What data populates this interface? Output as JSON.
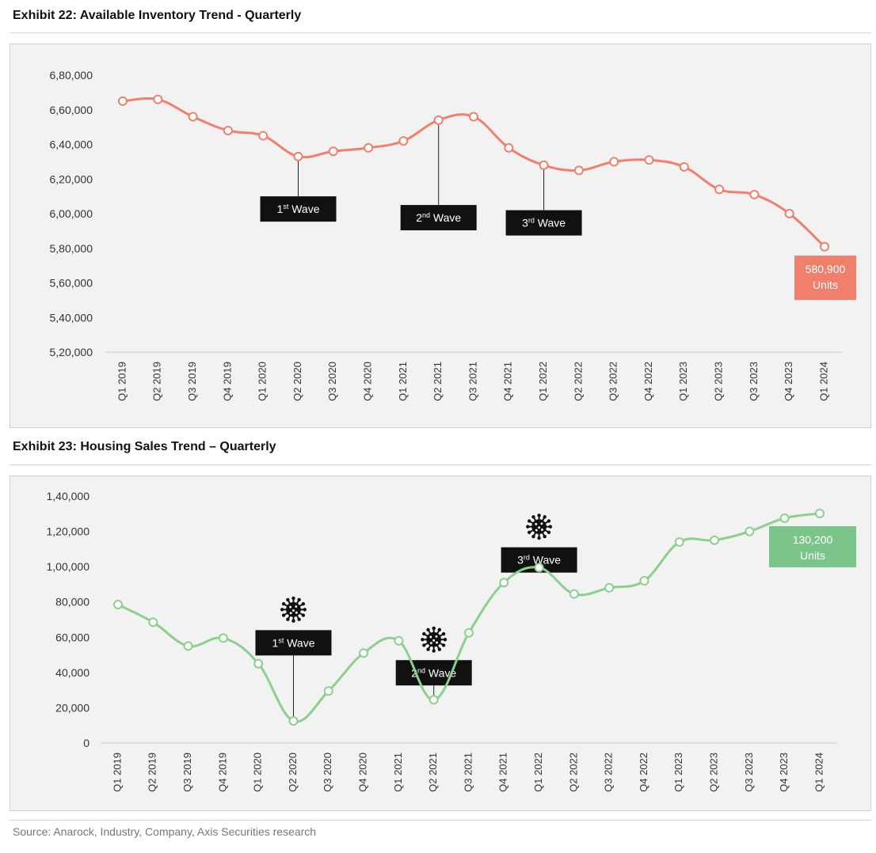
{
  "exhibit22": {
    "title": "Exhibit 22: Available Inventory Trend - Quarterly"
  },
  "exhibit23": {
    "title": "Exhibit 23: Housing Sales Trend –  Quarterly"
  },
  "source": "Source: Anarock, Industry, Company, Axis Securities research",
  "chart_data": [
    {
      "type": "line",
      "title": "Exhibit 22: Available Inventory Trend - Quarterly",
      "xlabel": "",
      "ylabel": "",
      "categories": [
        "Q1 2019",
        "Q2 2019",
        "Q3 2019",
        "Q4 2019",
        "Q1 2020",
        "Q2 2020",
        "Q3 2020",
        "Q4 2020",
        "Q1 2021",
        "Q2 2021",
        "Q3 2021",
        "Q4 2021",
        "Q1 2022",
        "Q2 2022",
        "Q3 2022",
        "Q4 2022",
        "Q1 2023",
        "Q2 2023",
        "Q3 2023",
        "Q4 2023",
        "Q1 2024"
      ],
      "series": [
        {
          "name": "Available Inventory",
          "color": "#f07f6c",
          "values": [
            665000,
            666000,
            656000,
            648000,
            645000,
            633000,
            636000,
            638000,
            642000,
            654000,
            656000,
            638000,
            628000,
            625000,
            630000,
            631000,
            627000,
            614000,
            611000,
            600000,
            580900
          ]
        }
      ],
      "ylim": [
        520000,
        680000
      ],
      "yticks": [
        {
          "v": 520000,
          "label": "5,20,000"
        },
        {
          "v": 540000,
          "label": "5,40,000"
        },
        {
          "v": 560000,
          "label": "5,60,000"
        },
        {
          "v": 580000,
          "label": "5,80,000"
        },
        {
          "v": 600000,
          "label": "6,00,000"
        },
        {
          "v": 620000,
          "label": "6,20,000"
        },
        {
          "v": 640000,
          "label": "6,40,000"
        },
        {
          "v": 660000,
          "label": "6,60,000"
        },
        {
          "v": 680000,
          "label": "6,80,000"
        }
      ],
      "annotations": [
        {
          "index": 5,
          "base": "1",
          "sup": "st",
          "rest": " Wave",
          "value_at": 610000
        },
        {
          "index": 9,
          "base": "2",
          "sup": "nd",
          "rest": " Wave",
          "value_at": 605000
        },
        {
          "index": 12,
          "base": "3",
          "sup": "rd",
          "rest": " Wave",
          "value_at": 602000
        }
      ],
      "callout": {
        "lines": [
          "580,900",
          "Units"
        ],
        "color": "#f07f6c"
      },
      "virus_icons": []
    },
    {
      "type": "line",
      "title": "Exhibit 23: Housing Sales Trend –  Quarterly",
      "xlabel": "",
      "ylabel": "",
      "categories": [
        "Q1 2019",
        "Q2 2019",
        "Q3 2019",
        "Q4 2019",
        "Q1 2020",
        "Q2 2020",
        "Q3 2020",
        "Q4 2020",
        "Q1 2021",
        "Q2 2021",
        "Q3 2021",
        "Q4 2021",
        "Q1 2022",
        "Q2 2022",
        "Q3 2022",
        "Q4 2022",
        "Q1 2023",
        "Q2 2023",
        "Q3 2023",
        "Q4 2023",
        "Q1 2024"
      ],
      "series": [
        {
          "name": "Housing Sales",
          "color": "#8ccf8e",
          "values": [
            78500,
            68500,
            55000,
            59500,
            45000,
            12500,
            29500,
            51000,
            58000,
            24500,
            62500,
            91000,
            99500,
            84500,
            88000,
            92000,
            114000,
            115000,
            120000,
            127500,
            130200
          ]
        }
      ],
      "ylim": [
        0,
        140000
      ],
      "yticks": [
        {
          "v": 0,
          "label": "0"
        },
        {
          "v": 20000,
          "label": "20,000"
        },
        {
          "v": 40000,
          "label": "40,000"
        },
        {
          "v": 60000,
          "label": "60,000"
        },
        {
          "v": 80000,
          "label": "80,000"
        },
        {
          "v": 100000,
          "label": "1,00,000"
        },
        {
          "v": 120000,
          "label": "1,20,000"
        },
        {
          "v": 140000,
          "label": "1,40,000"
        }
      ],
      "annotations": [
        {
          "index": 5,
          "base": "1",
          "sup": "st",
          "rest": " Wave",
          "value_at": 64000
        },
        {
          "index": 9,
          "base": "2",
          "sup": "nd",
          "rest": " Wave",
          "value_at": 47000
        },
        {
          "index": 12,
          "base": "3",
          "sup": "rd",
          "rest": " Wave",
          "value_at": 111000
        }
      ],
      "callout": {
        "lines": [
          "130,200",
          "Units"
        ],
        "color": "#7cc58a"
      },
      "virus_icons": [
        "virus-icon",
        "virus-icon",
        "virus-icon"
      ]
    }
  ]
}
